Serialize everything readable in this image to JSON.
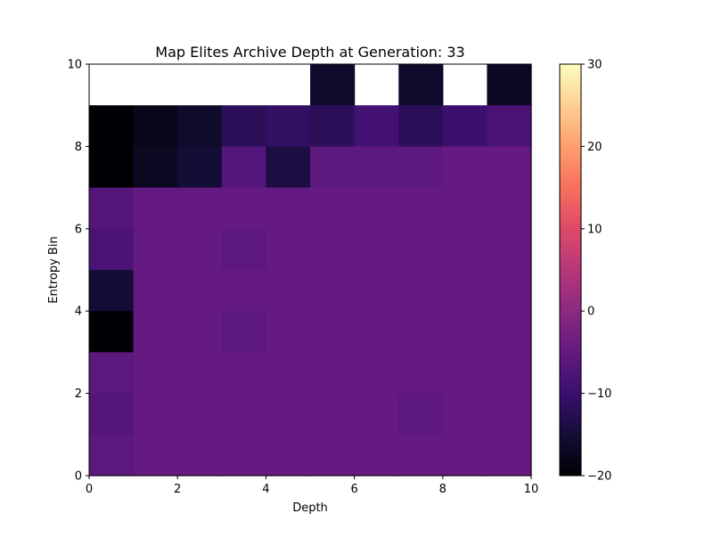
{
  "chart_data": {
    "type": "heatmap",
    "title": "Map Elites Archive Depth at Generation: 33",
    "xlabel": "Depth",
    "ylabel": "Entropy Bin",
    "xlim": [
      0,
      10
    ],
    "ylim": [
      0,
      10
    ],
    "x_ticks": [
      "0",
      "2",
      "4",
      "6",
      "8",
      "10"
    ],
    "y_ticks": [
      "0",
      "2",
      "4",
      "6",
      "8",
      "10"
    ],
    "colormap": "magma",
    "colorbar": {
      "min": -20,
      "max": 30,
      "ticks": [
        "−20",
        "−10",
        "0",
        "10",
        "20",
        "30"
      ]
    },
    "grid": false,
    "rows_top_to_bottom": [
      [
        null,
        null,
        null,
        null,
        null,
        -16,
        null,
        -16,
        null,
        -17
      ],
      [
        -20,
        -18,
        -16,
        -12,
        -11,
        -12,
        -9,
        -12,
        -10,
        -8
      ],
      [
        -20,
        -17,
        -15,
        -7,
        -14,
        -6,
        -6,
        -6,
        -5,
        -5
      ],
      [
        -7,
        -5,
        -5,
        -5,
        -5,
        -5,
        -5,
        -5,
        -5,
        -5
      ],
      [
        -8,
        -5,
        -5,
        -6,
        -5,
        -5,
        -5,
        -5,
        -5,
        -5
      ],
      [
        -15,
        -5,
        -5,
        -5,
        -5,
        -5,
        -5,
        -5,
        -5,
        -5
      ],
      [
        -20,
        -5,
        -5,
        -6,
        -5,
        -5,
        -5,
        -5,
        -5,
        -5
      ],
      [
        -6,
        -5,
        -5,
        -5,
        -5,
        -5,
        -5,
        -5,
        -5,
        -5
      ],
      [
        -7,
        -5,
        -5,
        -5,
        -5,
        -5,
        -5,
        -6,
        -5,
        -5
      ],
      [
        -6,
        -5,
        -5,
        -5,
        -5,
        -5,
        -5,
        -5,
        -5,
        -5
      ]
    ]
  }
}
